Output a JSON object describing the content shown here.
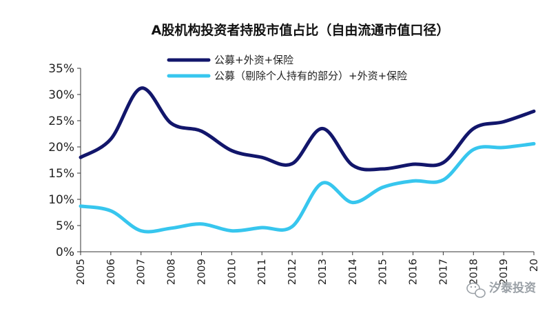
{
  "chart_data": {
    "type": "line",
    "title": "A股机构投资者持股市值占比（自由流通市值口径）",
    "xlabel": "",
    "ylabel": "",
    "x": [
      "2005",
      "2006",
      "2007",
      "2008",
      "2009",
      "2010",
      "2011",
      "2012",
      "2013",
      "2014",
      "2015",
      "2016",
      "2017",
      "2018",
      "2019",
      "20"
    ],
    "ylim": [
      0,
      35
    ],
    "yticks": [
      "0%",
      "5%",
      "10%",
      "15%",
      "20%",
      "25%",
      "30%",
      "35%"
    ],
    "grid": false,
    "legend_position": "top",
    "series": [
      {
        "name": "公募+外资+保险",
        "color": "#12166b",
        "values": [
          18.0,
          21.5,
          31.2,
          24.5,
          23.0,
          19.3,
          18.0,
          16.8,
          23.5,
          16.5,
          15.8,
          16.7,
          17.0,
          23.5,
          24.8,
          26.8
        ]
      },
      {
        "name": "公募（剔除个人持有的部分）+外资+保险",
        "color": "#37c6ee",
        "values": [
          8.7,
          7.8,
          4.0,
          4.5,
          5.3,
          4.0,
          4.6,
          4.8,
          13.1,
          9.4,
          12.3,
          13.5,
          13.7,
          19.5,
          19.9,
          20.6
        ]
      }
    ]
  },
  "watermark": {
    "text": "汐泰投资",
    "icon": "wechat-icon"
  }
}
